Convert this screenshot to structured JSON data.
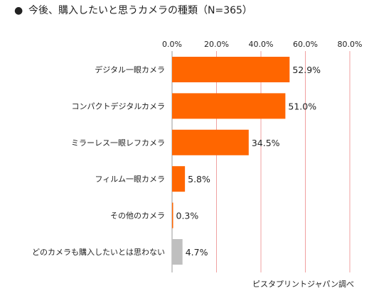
{
  "title": "今後、購入したいと思うカメラの種類（N=365）",
  "title_bullet": "●",
  "source": "ピスタプリントジャパン調べ",
  "chart_data": {
    "type": "bar",
    "orientation": "horizontal",
    "title": "今後、購入したいと思うカメラの種類（N=365）",
    "categories": [
      "デジタル一眼カメラ",
      "コンパクトデジタルカメラ",
      "ミラーレス一眼レフカメラ",
      "フィルム一眼カメラ",
      "その他のカメラ",
      "どのカメラも購入したいとは思わない"
    ],
    "values": [
      52.9,
      51.0,
      34.5,
      5.8,
      0.3,
      4.7
    ],
    "value_labels": [
      "52.9%",
      "51.0%",
      "34.5%",
      "5.8%",
      "0.3%",
      "4.7%"
    ],
    "bar_colors": [
      "#ff6600",
      "#ff6600",
      "#ff6600",
      "#ff6600",
      "#ff6600",
      "#bfbfbf"
    ],
    "xlim": [
      0,
      80
    ],
    "xticks": [
      0,
      20,
      40,
      60,
      80
    ],
    "xtick_labels": [
      "0.0%",
      "20.0%",
      "40.0%",
      "60.0%",
      "80.0%"
    ],
    "axis_position": "top",
    "grid": true,
    "grid_color": "#f0a0a0",
    "xlabel": "",
    "ylabel": ""
  }
}
